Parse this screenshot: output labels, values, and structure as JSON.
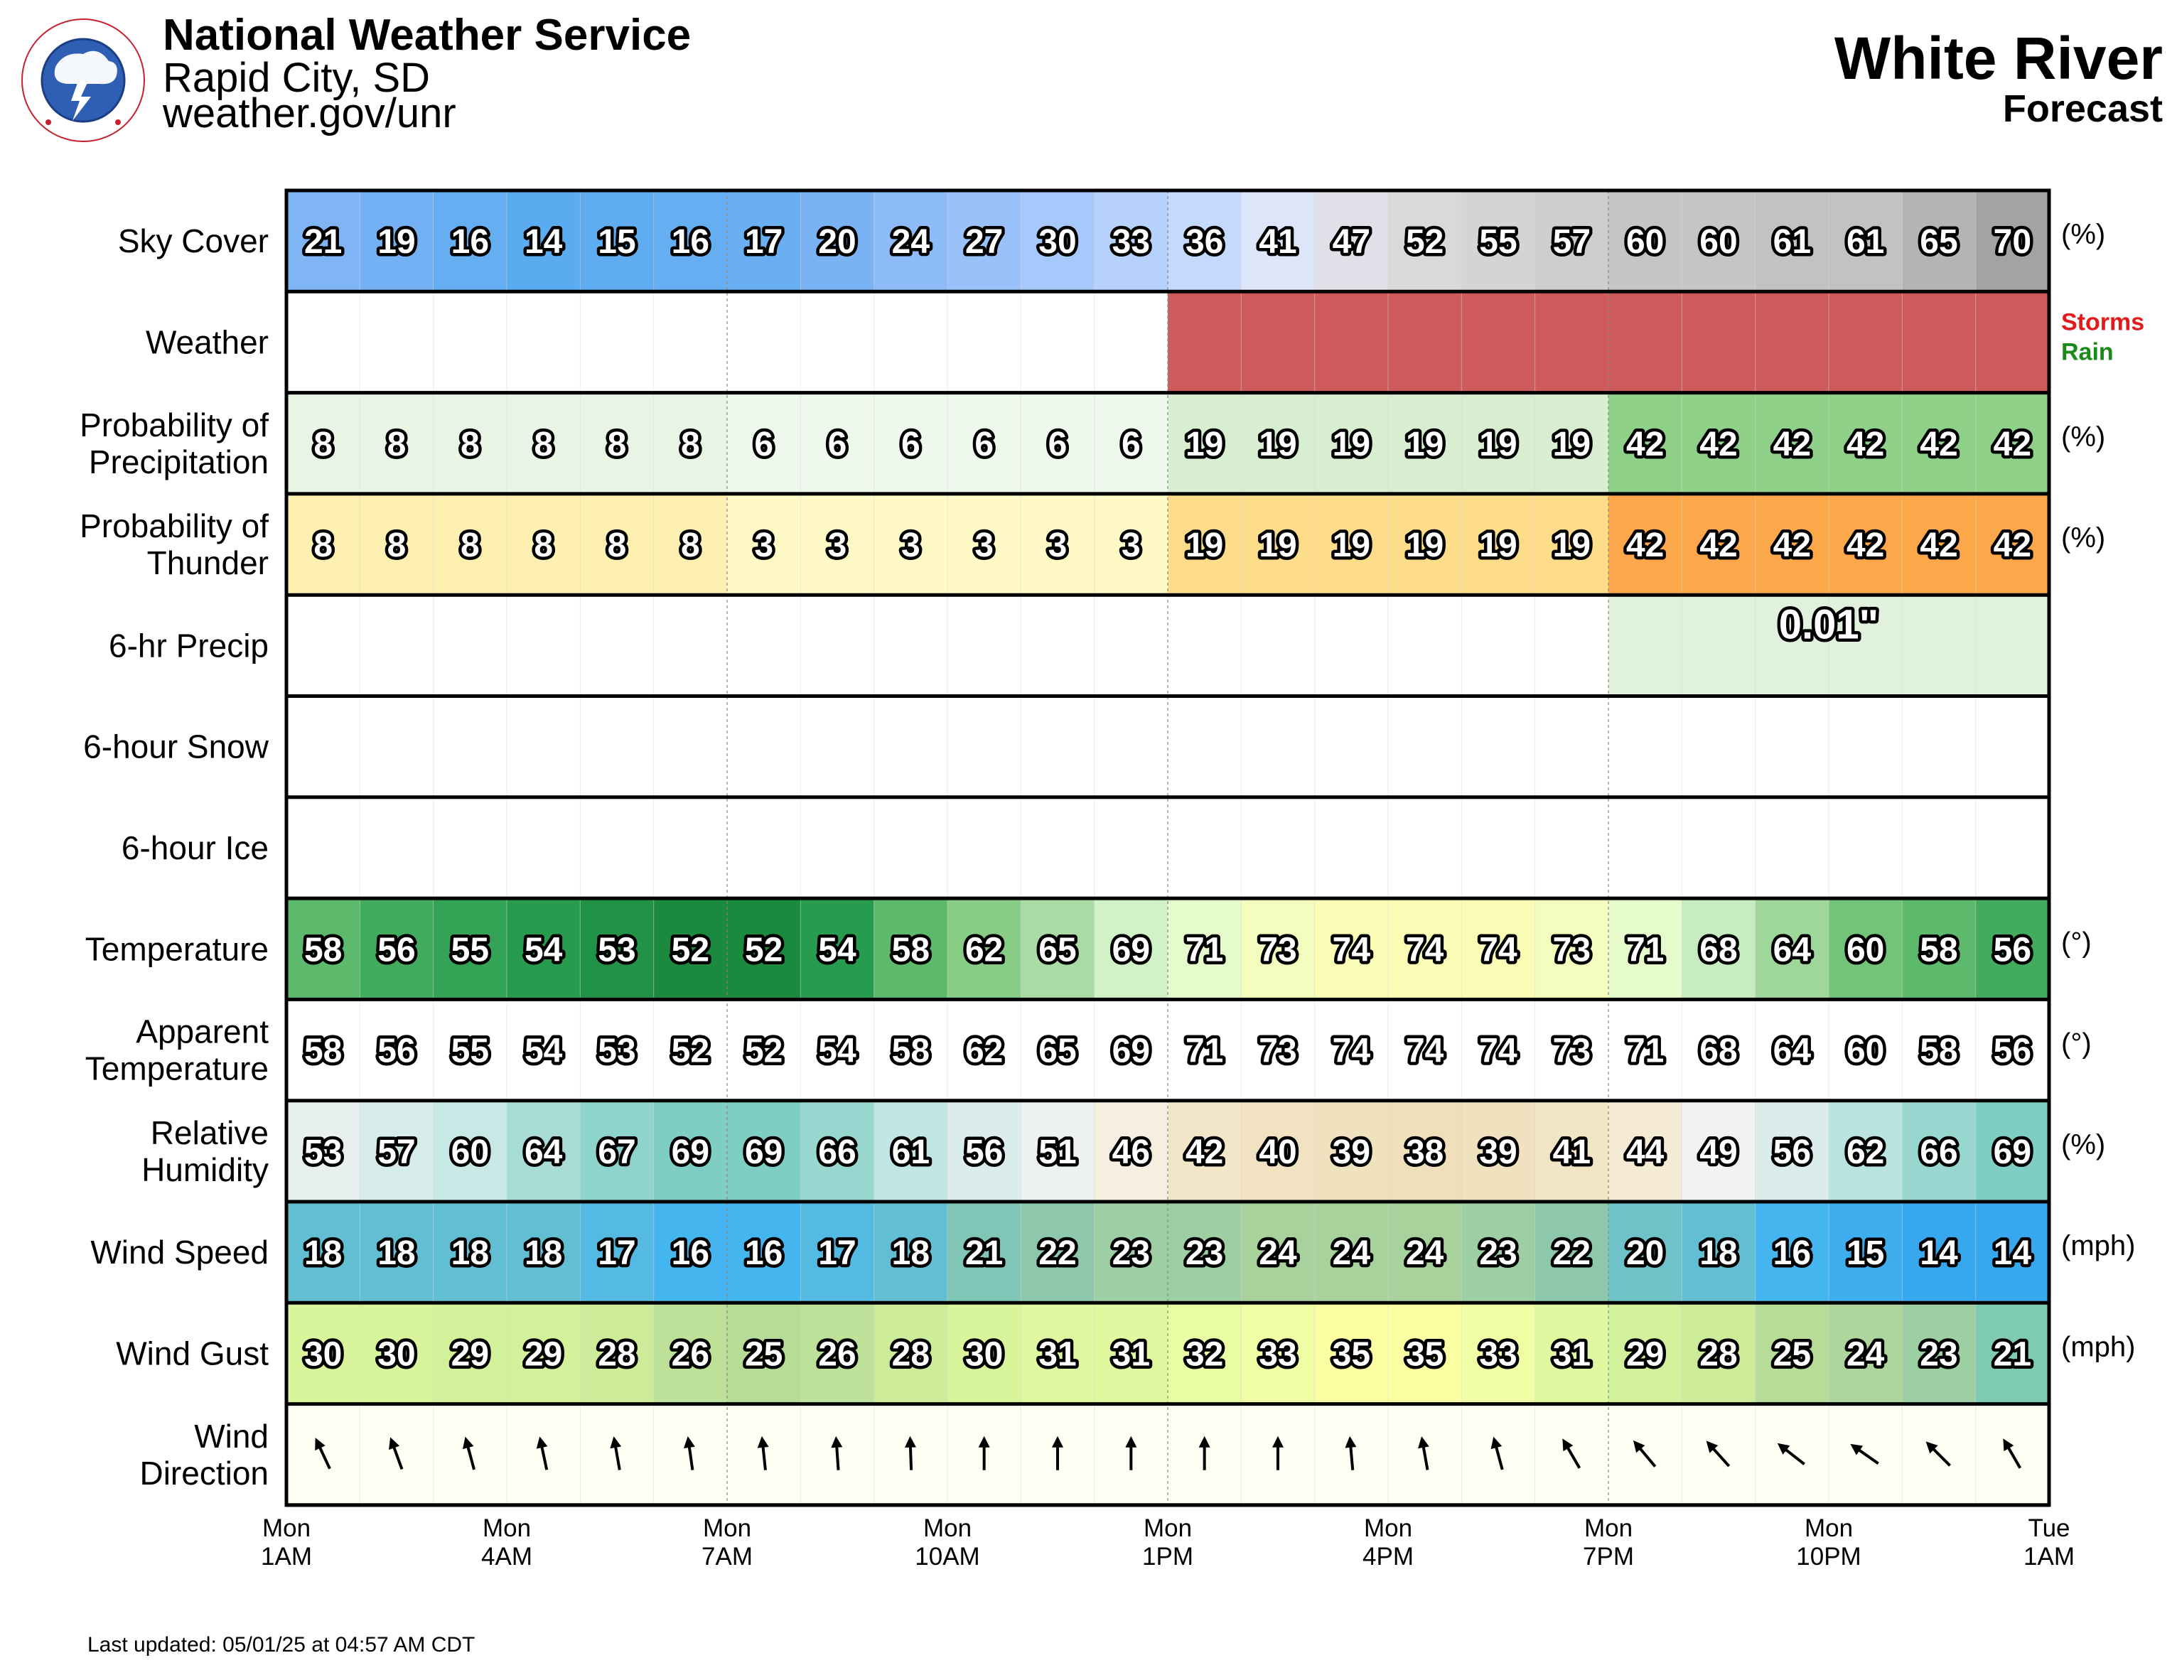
{
  "header": {
    "agency": "National Weather Service",
    "office": "Rapid City, SD",
    "url": "weather.gov/unr",
    "location": "White River",
    "subtitle": "Forecast",
    "logo_text": "NATIONAL WEATHER SERVICE"
  },
  "footer": {
    "last_updated": "Last updated: 05/01/25 at 04:57 AM CDT"
  },
  "weather_legend": [
    {
      "label": "Storms",
      "color": "#e31a1c"
    },
    {
      "label": "Rain",
      "color": "#1a8a1a"
    }
  ],
  "chart_data": {
    "type": "table",
    "hours": 24,
    "x_ticks": [
      {
        "hour": 0,
        "day": "Mon",
        "time": "1AM"
      },
      {
        "hour": 3,
        "day": "Mon",
        "time": "4AM"
      },
      {
        "hour": 6,
        "day": "Mon",
        "time": "7AM"
      },
      {
        "hour": 9,
        "day": "Mon",
        "time": "10AM"
      },
      {
        "hour": 12,
        "day": "Mon",
        "time": "1PM"
      },
      {
        "hour": 15,
        "day": "Mon",
        "time": "4PM"
      },
      {
        "hour": 18,
        "day": "Mon",
        "time": "7PM"
      },
      {
        "hour": 21,
        "day": "Mon",
        "time": "10PM"
      },
      {
        "hour": 24,
        "day": "Tue",
        "time": "1AM"
      }
    ],
    "rows": [
      {
        "id": "sky",
        "label": [
          "Sky Cover"
        ],
        "unit": "(%)",
        "values": [
          21,
          19,
          16,
          14,
          15,
          16,
          17,
          20,
          24,
          27,
          30,
          33,
          36,
          41,
          47,
          52,
          55,
          57,
          60,
          60,
          61,
          61,
          65,
          70
        ]
      },
      {
        "id": "weather",
        "label": [
          "Weather"
        ],
        "unit": "",
        "values": [
          "",
          "",
          "",
          "",
          "",
          "",
          "",
          "",
          "",
          "",
          "",
          "",
          "Storms",
          "Storms",
          "Storms",
          "Storms",
          "Storms",
          "Storms",
          "Storms",
          "Storms",
          "Storms",
          "Storms",
          "Storms",
          "Storms"
        ]
      },
      {
        "id": "pop",
        "label": [
          "Probability of",
          "Precipitation"
        ],
        "unit": "(%)",
        "values": [
          8,
          8,
          8,
          8,
          8,
          8,
          6,
          6,
          6,
          6,
          6,
          6,
          19,
          19,
          19,
          19,
          19,
          19,
          42,
          42,
          42,
          42,
          42,
          42
        ]
      },
      {
        "id": "thunder",
        "label": [
          "Probability of",
          "Thunder"
        ],
        "unit": "(%)",
        "values": [
          8,
          8,
          8,
          8,
          8,
          8,
          3,
          3,
          3,
          3,
          3,
          3,
          19,
          19,
          19,
          19,
          19,
          19,
          42,
          42,
          42,
          42,
          42,
          42
        ]
      },
      {
        "id": "qpf",
        "label": [
          "6-hr Precip"
        ],
        "unit": "",
        "blocks": [
          {
            "start": 18,
            "end": 24,
            "text": "0.01\""
          }
        ]
      },
      {
        "id": "snow",
        "label": [
          "6-hour Snow"
        ],
        "unit": "",
        "blocks": []
      },
      {
        "id": "ice",
        "label": [
          "6-hour Ice"
        ],
        "unit": "",
        "blocks": []
      },
      {
        "id": "temp",
        "label": [
          "Temperature"
        ],
        "unit": "(°)",
        "values": [
          58,
          56,
          55,
          54,
          53,
          52,
          52,
          54,
          58,
          62,
          65,
          69,
          71,
          73,
          74,
          74,
          74,
          73,
          71,
          68,
          64,
          60,
          58,
          56
        ]
      },
      {
        "id": "apparent",
        "label": [
          "Apparent",
          "Temperature"
        ],
        "unit": "(°)",
        "values": [
          58,
          56,
          55,
          54,
          53,
          52,
          52,
          54,
          58,
          62,
          65,
          69,
          71,
          73,
          74,
          74,
          74,
          73,
          71,
          68,
          64,
          60,
          58,
          56
        ]
      },
      {
        "id": "rh",
        "label": [
          "Relative",
          "Humidity"
        ],
        "unit": "(%)",
        "values": [
          53,
          57,
          60,
          64,
          67,
          69,
          69,
          66,
          61,
          56,
          51,
          46,
          42,
          40,
          39,
          38,
          39,
          41,
          44,
          49,
          56,
          62,
          66,
          69
        ]
      },
      {
        "id": "wspd",
        "label": [
          "Wind Speed"
        ],
        "unit": "(mph)",
        "values": [
          18,
          18,
          18,
          18,
          17,
          16,
          16,
          17,
          18,
          21,
          22,
          23,
          23,
          24,
          24,
          24,
          23,
          22,
          20,
          18,
          16,
          15,
          14,
          14
        ]
      },
      {
        "id": "wgust",
        "label": [
          "Wind Gust"
        ],
        "unit": "(mph)",
        "values": [
          30,
          30,
          29,
          29,
          28,
          26,
          25,
          26,
          28,
          30,
          31,
          31,
          32,
          33,
          35,
          35,
          33,
          31,
          29,
          28,
          25,
          24,
          23,
          21
        ]
      },
      {
        "id": "wdir",
        "label": [
          "Wind",
          "Direction"
        ],
        "unit": "",
        "values_deg": [
          155,
          160,
          165,
          168,
          170,
          172,
          174,
          176,
          178,
          180,
          180,
          180,
          180,
          180,
          175,
          170,
          165,
          150,
          140,
          138,
          128,
          125,
          135,
          150
        ]
      }
    ]
  }
}
